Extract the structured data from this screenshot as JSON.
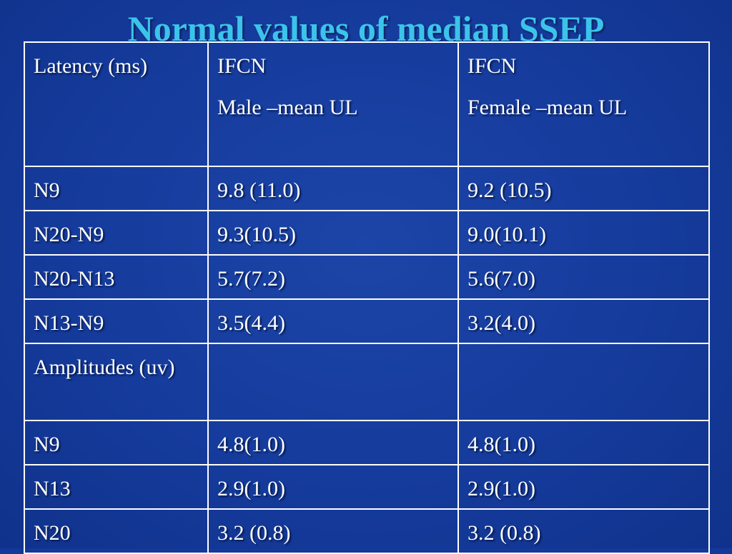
{
  "slide": {
    "title": "Normal values of median SSEP"
  },
  "table": {
    "header": {
      "col1": "Latency (ms)",
      "col2": [
        "IFCN",
        "Male –mean UL"
      ],
      "col3": [
        "IFCN",
        "Female –mean UL"
      ]
    },
    "rows": [
      {
        "label": "N9",
        "male": "9.8 (11.0)",
        "female": "9.2 (10.5)"
      },
      {
        "label": "N20-N9",
        "male": "9.3(10.5)",
        "female": "9.0(10.1)"
      },
      {
        "label": "N20-N13",
        "male": "5.7(7.2)",
        "female": "5.6(7.0)"
      },
      {
        "label": "N13-N9",
        "male": "3.5(4.4)",
        "female": "3.2(4.0)"
      },
      {
        "label": "Amplitudes (uv)",
        "male": "",
        "female": ""
      },
      {
        "label": "N9",
        "male": "4.8(1.0)",
        "female": "4.8(1.0)"
      },
      {
        "label": "N13",
        "male": "2.9(1.0)",
        "female": "2.9(1.0)"
      },
      {
        "label": "N20",
        "male": "3.2 (0.8)",
        "female": "3.2 (0.8)"
      }
    ]
  },
  "colors": {
    "background": "#153b9c",
    "title": "#3cc3ea",
    "text": "#ffffff",
    "grid": "#ffffff"
  }
}
